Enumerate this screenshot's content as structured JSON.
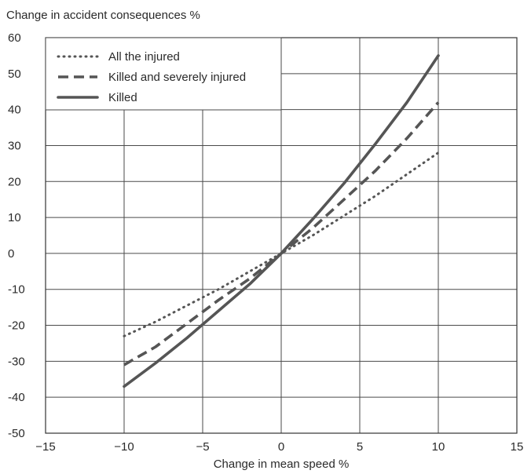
{
  "chart_data": {
    "type": "line",
    "title": "",
    "ylabel": "Change in accident consequences %",
    "xlabel": "Change in mean speed %",
    "xlim": [
      -15,
      15
    ],
    "ylim": [
      -50,
      60
    ],
    "xticks": [
      -15,
      -10,
      -5,
      0,
      5,
      10,
      15
    ],
    "yticks": [
      -50,
      -40,
      -30,
      -20,
      -10,
      0,
      10,
      20,
      30,
      40,
      50,
      60
    ],
    "xtick_labels": [
      "−15",
      "−10",
      "−5",
      "0",
      "5",
      "10",
      "15"
    ],
    "ytick_labels": [
      "-50",
      "-40",
      "-30",
      "-20",
      "-10",
      "0",
      "10",
      "20",
      "30",
      "40",
      "50",
      "60"
    ],
    "grid": true,
    "legend_position": "top-left",
    "series": [
      {
        "name": "All the injured",
        "style": "dotted",
        "color": "#555555",
        "x": [
          -10,
          -8,
          -6,
          -4,
          -2,
          0,
          2,
          4,
          6,
          8,
          10
        ],
        "y": [
          -23,
          -19,
          -14.5,
          -10,
          -5,
          0,
          5,
          10.5,
          16,
          22,
          28
        ]
      },
      {
        "name": "Killed and severely injured",
        "style": "dashed",
        "color": "#555555",
        "x": [
          -10,
          -8,
          -6,
          -4,
          -2,
          0,
          2,
          4,
          6,
          8,
          10
        ],
        "y": [
          -31,
          -26,
          -19.5,
          -13,
          -7,
          0,
          7,
          15,
          23,
          32,
          42
        ]
      },
      {
        "name": "Killed",
        "style": "solid",
        "color": "#555555",
        "x": [
          -10,
          -8,
          -6,
          -4,
          -2,
          0,
          2,
          4,
          6,
          8,
          10
        ],
        "y": [
          -37,
          -30.5,
          -23.5,
          -16,
          -8.5,
          0,
          9.5,
          19.5,
          30.5,
          42,
          55
        ]
      }
    ]
  }
}
